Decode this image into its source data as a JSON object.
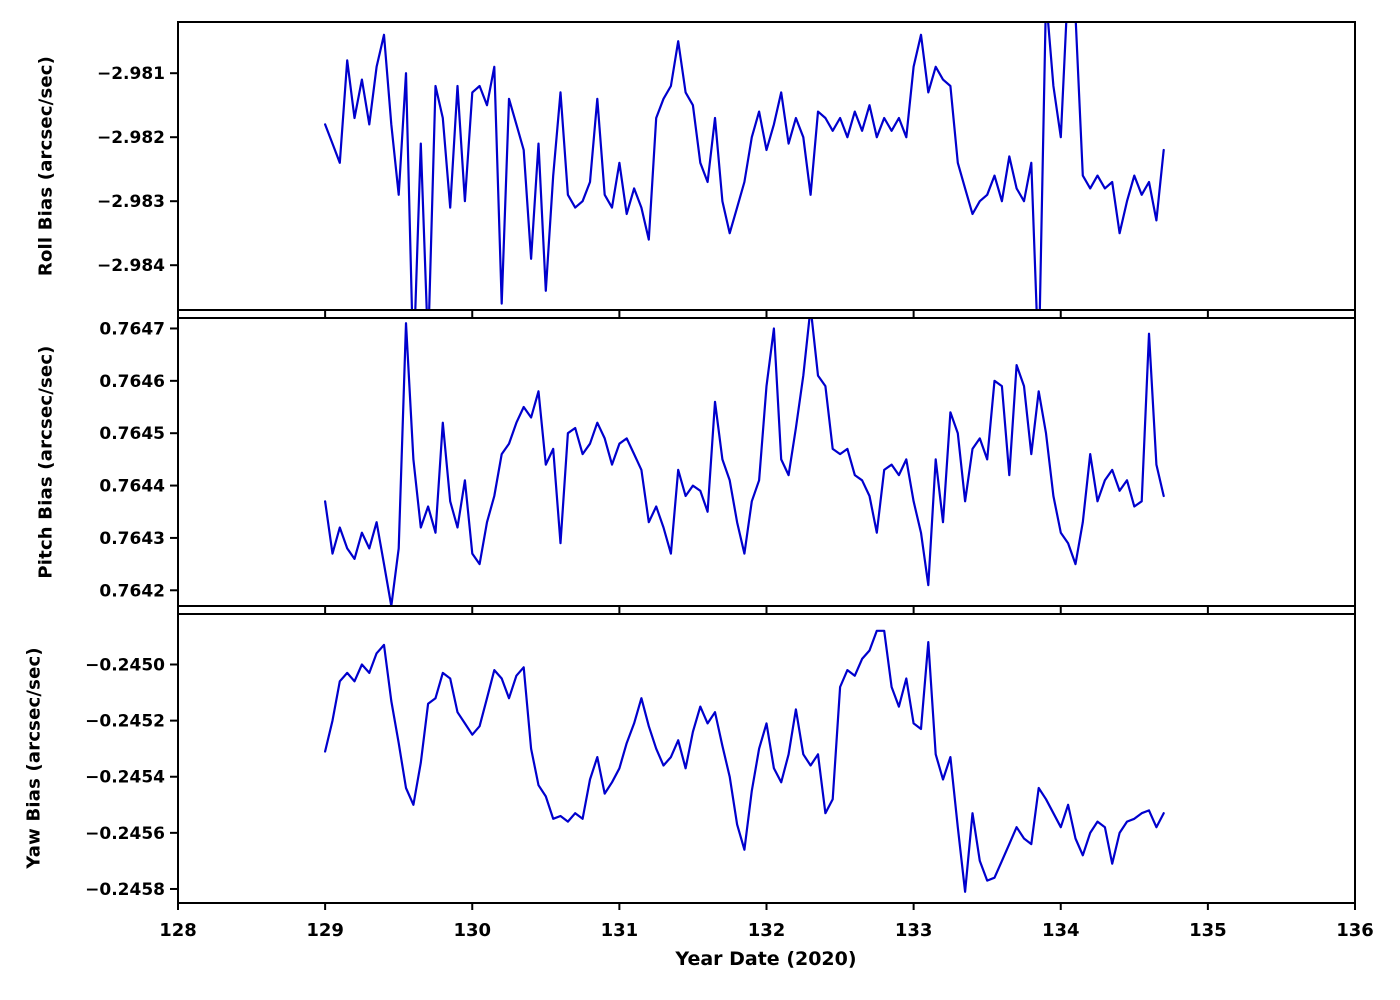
{
  "chart_data": {
    "type": "line",
    "title": "",
    "xlabel": "Year Date (2020)",
    "xlim": [
      128,
      136
    ],
    "xticks": [
      128,
      129,
      130,
      131,
      132,
      133,
      134,
      135,
      136
    ],
    "xtick_labels": [
      "128",
      "129",
      "130",
      "131",
      "132",
      "133",
      "134",
      "135",
      "136"
    ],
    "x_start": 129.0,
    "x_step": 0.05,
    "n_points": 115,
    "line_color": "#0000CD",
    "grid": false,
    "legend_position": "none",
    "subplots": [
      {
        "name": "roll",
        "ylabel": "Roll Bias (arcsec/sec)",
        "ylim": [
          -2.9847,
          -2.9802
        ],
        "yticks": [
          -2.981,
          -2.982,
          -2.983,
          -2.984
        ],
        "ytick_labels": [
          "−2.981",
          "−2.982",
          "−2.983",
          "−2.984"
        ],
        "values": [
          -2.9818,
          -2.9821,
          -2.9824,
          -2.9808,
          -2.9817,
          -2.9811,
          -2.9818,
          -2.9809,
          -2.9804,
          -2.9818,
          -2.9829,
          -2.981,
          -2.9856,
          -2.9821,
          -2.9853,
          -2.9812,
          -2.9817,
          -2.9831,
          -2.9812,
          -2.983,
          -2.9813,
          -2.9812,
          -2.9815,
          -2.9809,
          -2.9846,
          -2.9814,
          -2.9818,
          -2.9822,
          -2.9839,
          -2.9821,
          -2.9844,
          -2.9826,
          -2.9813,
          -2.9829,
          -2.9831,
          -2.983,
          -2.9827,
          -2.9814,
          -2.9829,
          -2.9831,
          -2.9824,
          -2.9832,
          -2.9828,
          -2.9831,
          -2.9836,
          -2.9817,
          -2.9814,
          -2.9812,
          -2.9805,
          -2.9813,
          -2.9815,
          -2.9824,
          -2.9827,
          -2.9817,
          -2.983,
          -2.9835,
          -2.9831,
          -2.9827,
          -2.982,
          -2.9816,
          -2.9822,
          -2.9818,
          -2.9813,
          -2.9821,
          -2.9817,
          -2.982,
          -2.9829,
          -2.9816,
          -2.9817,
          -2.9819,
          -2.9817,
          -2.982,
          -2.9816,
          -2.9819,
          -2.9815,
          -2.982,
          -2.9817,
          -2.9819,
          -2.9817,
          -2.982,
          -2.9809,
          -2.9804,
          -2.9813,
          -2.9809,
          -2.9811,
          -2.9812,
          -2.9824,
          -2.9828,
          -2.9832,
          -2.983,
          -2.9829,
          -2.9826,
          -2.983,
          -2.9823,
          -2.9828,
          -2.983,
          -2.9824,
          -2.9856,
          -2.9798,
          -2.9812,
          -2.982,
          -2.9796,
          -2.9801,
          -2.9826,
          -2.9828,
          -2.9826,
          -2.9828,
          -2.9827,
          -2.9835,
          -2.983,
          -2.9826,
          -2.9829,
          -2.9827,
          -2.9833,
          -2.9822
        ]
      },
      {
        "name": "pitch",
        "ylabel": "Pitch Bias (arcsec/sec)",
        "ylim": [
          0.76417,
          0.76472
        ],
        "yticks": [
          0.7647,
          0.7646,
          0.7645,
          0.7644,
          0.7643,
          0.7642
        ],
        "ytick_labels": [
          "0.7647",
          "0.7646",
          "0.7645",
          "0.7644",
          "0.7643",
          "0.7642"
        ],
        "values": [
          0.76437,
          0.76427,
          0.76432,
          0.76428,
          0.76426,
          0.76431,
          0.76428,
          0.76433,
          0.76425,
          0.76417,
          0.76428,
          0.76471,
          0.76445,
          0.76432,
          0.76436,
          0.76431,
          0.76452,
          0.76437,
          0.76432,
          0.76441,
          0.76427,
          0.76425,
          0.76433,
          0.76438,
          0.76446,
          0.76448,
          0.76452,
          0.76455,
          0.76453,
          0.76458,
          0.76444,
          0.76447,
          0.76429,
          0.7645,
          0.76451,
          0.76446,
          0.76448,
          0.76452,
          0.76449,
          0.76444,
          0.76448,
          0.76449,
          0.76446,
          0.76443,
          0.76433,
          0.76436,
          0.76432,
          0.76427,
          0.76443,
          0.76438,
          0.7644,
          0.76439,
          0.76435,
          0.76456,
          0.76445,
          0.76441,
          0.76433,
          0.76427,
          0.76437,
          0.76441,
          0.76459,
          0.7647,
          0.76445,
          0.76442,
          0.76451,
          0.76461,
          0.76474,
          0.76461,
          0.76459,
          0.76447,
          0.76446,
          0.76447,
          0.76442,
          0.76441,
          0.76438,
          0.76431,
          0.76443,
          0.76444,
          0.76442,
          0.76445,
          0.76437,
          0.76431,
          0.76421,
          0.76445,
          0.76433,
          0.76454,
          0.7645,
          0.76437,
          0.76447,
          0.76449,
          0.76445,
          0.7646,
          0.76459,
          0.76442,
          0.76463,
          0.76459,
          0.76446,
          0.76458,
          0.7645,
          0.76438,
          0.76431,
          0.76429,
          0.76425,
          0.76433,
          0.76446,
          0.76437,
          0.76441,
          0.76443,
          0.76439,
          0.76441,
          0.76436,
          0.76437,
          0.76469,
          0.76444,
          0.76438
        ]
      },
      {
        "name": "yaw",
        "ylabel": "Yaw Bias (arcsec/sec)",
        "ylim": [
          -0.24585,
          -0.24482
        ],
        "yticks": [
          -0.245,
          -0.2452,
          -0.2454,
          -0.2456,
          -0.2458
        ],
        "ytick_labels": [
          "−0.2450",
          "−0.2452",
          "−0.2454",
          "−0.2456",
          "−0.2458"
        ],
        "values": [
          -0.24531,
          -0.2452,
          -0.24506,
          -0.24503,
          -0.24506,
          -0.245,
          -0.24503,
          -0.24496,
          -0.24493,
          -0.24513,
          -0.24528,
          -0.24544,
          -0.2455,
          -0.24535,
          -0.24514,
          -0.24512,
          -0.24503,
          -0.24505,
          -0.24517,
          -0.24521,
          -0.24525,
          -0.24522,
          -0.24512,
          -0.24502,
          -0.24505,
          -0.24512,
          -0.24504,
          -0.24501,
          -0.2453,
          -0.24543,
          -0.24547,
          -0.24555,
          -0.24554,
          -0.24556,
          -0.24553,
          -0.24555,
          -0.24541,
          -0.24533,
          -0.24546,
          -0.24542,
          -0.24537,
          -0.24528,
          -0.24521,
          -0.24512,
          -0.24522,
          -0.2453,
          -0.24536,
          -0.24533,
          -0.24527,
          -0.24537,
          -0.24524,
          -0.24515,
          -0.24521,
          -0.24517,
          -0.24529,
          -0.2454,
          -0.24557,
          -0.24566,
          -0.24545,
          -0.2453,
          -0.24521,
          -0.24537,
          -0.24542,
          -0.24532,
          -0.24516,
          -0.24532,
          -0.24536,
          -0.24532,
          -0.24553,
          -0.24548,
          -0.24508,
          -0.24502,
          -0.24504,
          -0.24498,
          -0.24495,
          -0.24488,
          -0.24488,
          -0.24508,
          -0.24515,
          -0.24505,
          -0.24521,
          -0.24523,
          -0.24492,
          -0.24532,
          -0.24541,
          -0.24533,
          -0.24558,
          -0.24581,
          -0.24553,
          -0.2457,
          -0.24577,
          -0.24576,
          -0.2457,
          -0.24564,
          -0.24558,
          -0.24562,
          -0.24564,
          -0.24544,
          -0.24548,
          -0.24553,
          -0.24558,
          -0.2455,
          -0.24562,
          -0.24568,
          -0.2456,
          -0.24556,
          -0.24558,
          -0.24571,
          -0.2456,
          -0.24556,
          -0.24555,
          -0.24553,
          -0.24552,
          -0.24558,
          -0.24553
        ]
      }
    ]
  }
}
